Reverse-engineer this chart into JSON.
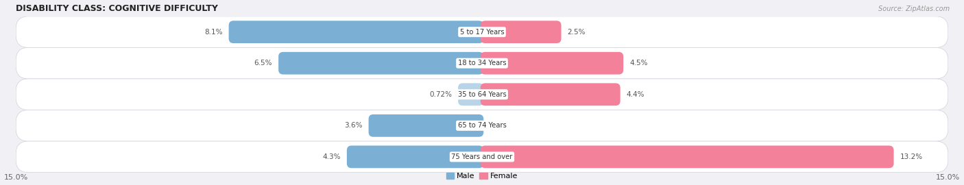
{
  "title": "DISABILITY CLASS: COGNITIVE DIFFICULTY",
  "source": "Source: ZipAtlas.com",
  "categories": [
    "5 to 17 Years",
    "18 to 34 Years",
    "35 to 64 Years",
    "65 to 74 Years",
    "75 Years and over"
  ],
  "male_values": [
    8.1,
    6.5,
    0.72,
    3.6,
    4.3
  ],
  "female_values": [
    2.5,
    4.5,
    4.4,
    0.0,
    13.2
  ],
  "max_value": 15.0,
  "male_color": "#7bafd4",
  "male_color_light": "#b8d4e8",
  "female_color": "#f4819a",
  "female_color_light": "#f9bfcc",
  "bg_color": "#f0f0f5",
  "row_bg_color": "#e8e8ef",
  "row_bg_color2": "#ebebf2",
  "label_color": "#555555",
  "title_color": "#222222",
  "bar_height": 0.62,
  "figsize": [
    14.06,
    2.7
  ],
  "dpi": 100
}
